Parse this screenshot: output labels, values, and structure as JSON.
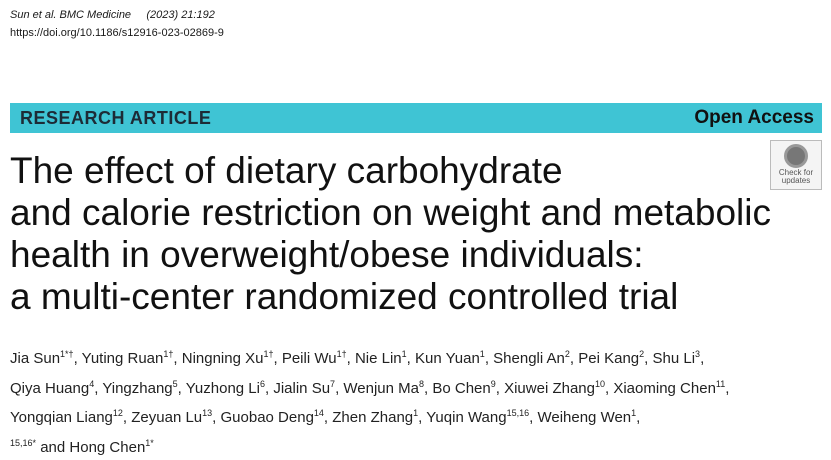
{
  "header": {
    "citation_authors": "Sun et al. BMC Medicine",
    "citation_issue": "(2023) 21:192",
    "doi": "https://doi.org/10.1186/s12916-023-02869-9"
  },
  "banner": {
    "type": "RESEARCH ARTICLE",
    "access": "Open Access"
  },
  "badge": {
    "lines": [
      "Check for",
      "updates"
    ]
  },
  "title": {
    "lines": [
      "The effect of dietary carbohydrate",
      "and calorie restriction on weight and metabolic",
      "health in overweight/obese individuals:",
      "a multi-center randomized controlled trial"
    ]
  },
  "authors": {
    "lines": [
      [
        {
          "name": "Jia Sun",
          "sup": "1*†",
          "punct": ","
        },
        {
          "name": "Yuting Ruan",
          "sup": "1†",
          "punct": ","
        },
        {
          "name": "Ningning Xu",
          "sup": "1†",
          "punct": ","
        },
        {
          "name": "Peili Wu",
          "sup": "1†",
          "punct": ","
        },
        {
          "name": "Nie Lin",
          "sup": "1",
          "punct": ","
        },
        {
          "name": "Kun Yuan",
          "sup": "1",
          "punct": ","
        },
        {
          "name": "Shengli An",
          "sup": "2",
          "punct": ","
        },
        {
          "name": "Pei Kang",
          "sup": "2",
          "punct": ","
        },
        {
          "name": "Shu Li",
          "sup": "3",
          "punct": ","
        }
      ],
      [
        {
          "name": "Qiya Huang",
          "sup": "4",
          "punct": ","
        },
        {
          "name": "Yingzhang",
          "sup": "5",
          "punct": ","
        },
        {
          "name": "Yuzhong Li",
          "sup": "6",
          "punct": ","
        },
        {
          "name": "Jialin Su",
          "sup": "7",
          "punct": ","
        },
        {
          "name": "Wenjun Ma",
          "sup": "8",
          "punct": ","
        },
        {
          "name": "Bo Chen",
          "sup": "9",
          "punct": ","
        },
        {
          "name": "Xiuwei Zhang",
          "sup": "10",
          "punct": ","
        },
        {
          "name": "Xiaoming Chen",
          "sup": "11",
          "punct": ","
        }
      ],
      [
        {
          "name": "Yongqian Liang",
          "sup": "12",
          "punct": ","
        },
        {
          "name": "Zeyuan Lu",
          "sup": "13",
          "punct": ","
        },
        {
          "name": "Guobao Deng",
          "sup": "14",
          "punct": ","
        },
        {
          "name": "Zhen Zhang",
          "sup": "1",
          "punct": ","
        },
        {
          "name": "Yuqin Wang",
          "sup": "15,16",
          "punct": ","
        },
        {
          "name": "Weiheng Wen",
          "sup": "1",
          "punct": ","
        }
      ],
      [
        {
          "sup": "15,16*"
        },
        {
          "name": "and Hong Chen",
          "sup": "1*"
        }
      ]
    ]
  }
}
